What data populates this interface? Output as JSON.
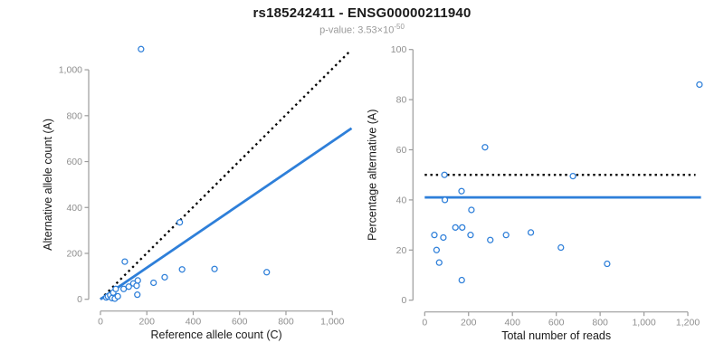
{
  "header": {
    "title": "rs185242411 - ENSG00000211940",
    "subtitle_prefix": "p-value: 3.53×10",
    "subtitle_exponent": "-50"
  },
  "colors": {
    "accent_blue": "#2E7FD9",
    "dotted_black": "#000000",
    "axis_gray": "#9b9b9b",
    "tick_label_gray": "#8f8f8f",
    "axis_title_color": "#1a1a1a",
    "point_fill": "#ffffff"
  },
  "chart_data": [
    {
      "type": "scatter",
      "name": "allele-count-scatter",
      "xlabel": "Reference allele count (C)",
      "ylabel": "Alternative allele count (A)",
      "xlim": [
        0,
        1085
      ],
      "ylim": [
        0,
        1095
      ],
      "xticks": [
        0,
        200,
        400,
        600,
        800,
        1000
      ],
      "yticks": [
        0,
        200,
        400,
        600,
        800,
        1000
      ],
      "grid": false,
      "legend": false,
      "points": [
        [
          25,
          8
        ],
        [
          32,
          13
        ],
        [
          42,
          18
        ],
        [
          50,
          5
        ],
        [
          55,
          29
        ],
        [
          62,
          3
        ],
        [
          66,
          45
        ],
        [
          75,
          13
        ],
        [
          100,
          45
        ],
        [
          122,
          55
        ],
        [
          142,
          69
        ],
        [
          156,
          59
        ],
        [
          159,
          20
        ],
        [
          161,
          82
        ],
        [
          105,
          164
        ],
        [
          229,
          72
        ],
        [
          277,
          96
        ],
        [
          342,
          335
        ],
        [
          352,
          130
        ],
        [
          492,
          132
        ],
        [
          717,
          118
        ],
        [
          175,
          1090
        ]
      ],
      "lines": [
        {
          "name": "identity-line",
          "style": "dotted",
          "color": "#000000",
          "from": [
            0,
            0
          ],
          "to": [
            1078,
            1083
          ]
        },
        {
          "name": "regression-line",
          "style": "solid",
          "color": "#2E7FD9",
          "from": [
            0,
            0
          ],
          "to": [
            1083,
            745
          ]
        }
      ]
    },
    {
      "type": "scatter",
      "name": "percentage-alternative-scatter",
      "xlabel": "Total number of reads",
      "ylabel": "Percentage alternative (A)",
      "xlim": [
        0,
        1270
      ],
      "ylim": [
        0,
        100
      ],
      "xticks": [
        0,
        200,
        400,
        600,
        800,
        1000,
        1200
      ],
      "yticks": [
        0,
        20,
        40,
        60,
        80,
        100
      ],
      "grid": false,
      "legend": false,
      "points": [
        [
          44,
          26
        ],
        [
          54,
          20
        ],
        [
          66,
          15
        ],
        [
          85,
          25
        ],
        [
          90,
          50
        ],
        [
          92,
          40
        ],
        [
          140,
          29
        ],
        [
          168,
          43.5
        ],
        [
          169,
          8
        ],
        [
          171,
          29
        ],
        [
          209,
          26
        ],
        [
          213,
          36
        ],
        [
          275,
          61
        ],
        [
          299,
          24
        ],
        [
          371,
          26
        ],
        [
          484,
          27
        ],
        [
          621,
          21
        ],
        [
          676,
          49.5
        ],
        [
          832,
          14.5
        ],
        [
          1253,
          86
        ]
      ],
      "lines": [
        {
          "name": "fifty-percent-line",
          "style": "dotted",
          "color": "#000000",
          "from": [
            0,
            50
          ],
          "to": [
            1235,
            50
          ]
        },
        {
          "name": "mean-percentage-line",
          "style": "solid",
          "color": "#2E7FD9",
          "from": [
            0,
            41
          ],
          "to": [
            1260,
            41
          ]
        }
      ]
    }
  ]
}
